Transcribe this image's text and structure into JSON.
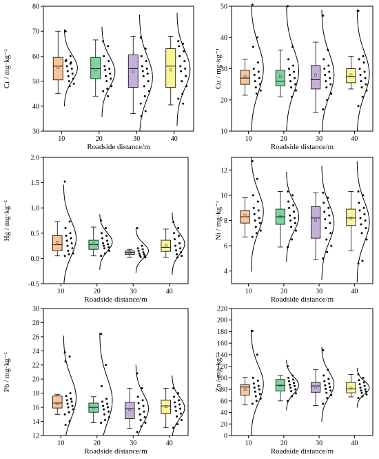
{
  "chart_data": [
    {
      "type": "box",
      "ylabel": "Cr / mg·kg⁻¹",
      "xlabel": "Roadside distance/m",
      "categories": [
        "10",
        "20",
        "30",
        "40"
      ],
      "ylim": [
        30,
        80
      ],
      "yticks": [
        30,
        40,
        50,
        60,
        70,
        80
      ],
      "colors": [
        "#f8c49a",
        "#7fd3a0",
        "#c4b1da",
        "#fbf59a"
      ],
      "boxes": [
        {
          "category": "10",
          "whisker_low": 45,
          "q1": 50.5,
          "median": 56,
          "q3": 59.5,
          "whisker_high": 70,
          "mean": 55.5
        },
        {
          "category": "20",
          "whisker_low": 44,
          "q1": 51,
          "median": 55,
          "q3": 59.5,
          "whisker_high": 66.5,
          "mean": 54.5
        },
        {
          "category": "30",
          "whisker_low": 37,
          "q1": 47.5,
          "median": 55,
          "q3": 60.5,
          "whisker_high": 68,
          "mean": 54
        },
        {
          "category": "40",
          "whisker_low": 40.5,
          "q1": 47.5,
          "median": 56,
          "q3": 63,
          "whisker_high": 68,
          "mean": 54.5
        }
      ],
      "points": [
        [
          70,
          60,
          58.5,
          57.5,
          56,
          55,
          54,
          53,
          52,
          51,
          50,
          49,
          48,
          58,
          57
        ],
        [
          66,
          64,
          60,
          58,
          56,
          55,
          54.5,
          53,
          52,
          51,
          50,
          48,
          47,
          46,
          44
        ],
        [
          67.5,
          63,
          60,
          58,
          56,
          55,
          54,
          53,
          52,
          50,
          48,
          46,
          44,
          41,
          38,
          36
        ],
        [
          66,
          65,
          64,
          62,
          60,
          58,
          56,
          55,
          54,
          52,
          50,
          48,
          45,
          43,
          41
        ]
      ]
    },
    {
      "type": "box",
      "ylabel": "Cu / mg·kg⁻¹",
      "xlabel": "Roadside distance/m",
      "categories": [
        "10",
        "20",
        "30",
        "40"
      ],
      "ylim": [
        10,
        50
      ],
      "yticks": [
        10,
        20,
        30,
        40,
        50
      ],
      "colors": [
        "#f8c49a",
        "#7fd3a0",
        "#c4b1da",
        "#fbf59a"
      ],
      "boxes": [
        {
          "category": "10",
          "whisker_low": 21.5,
          "q1": 25,
          "median": 27,
          "q3": 29.5,
          "whisker_high": 33,
          "mean": 27.5
        },
        {
          "category": "20",
          "whisker_low": 21,
          "q1": 24.5,
          "median": 26,
          "q3": 29.5,
          "whisker_high": 36,
          "mean": 27.5
        },
        {
          "category": "30",
          "whisker_low": 16,
          "q1": 23.5,
          "median": 26.5,
          "q3": 31,
          "whisker_high": 38.5,
          "mean": 28
        },
        {
          "category": "40",
          "whisker_low": 23.5,
          "q1": 25.5,
          "median": 27.5,
          "q3": 30,
          "whisker_high": 34,
          "mean": 28
        }
      ],
      "points": [
        [
          50.5,
          40,
          37,
          32,
          30,
          29,
          28,
          27,
          26,
          25,
          24,
          23,
          22
        ],
        [
          50,
          37,
          33,
          31,
          30,
          29,
          28,
          27,
          26,
          25,
          24,
          23,
          21
        ],
        [
          47,
          36,
          33,
          31,
          30,
          29,
          28,
          27,
          26,
          25,
          24,
          22,
          20,
          17
        ],
        [
          48.5,
          34,
          33,
          32,
          30,
          29,
          28,
          27,
          26,
          25,
          24,
          23,
          21,
          18
        ]
      ]
    },
    {
      "type": "box",
      "ylabel": "Hg / mg·kg⁻¹",
      "xlabel": "Roadside distance/m",
      "categories": [
        "10",
        "20",
        "30",
        "40"
      ],
      "ylim": [
        -0.5,
        2.0
      ],
      "yticks": [
        -0.5,
        0.0,
        0.5,
        1.0,
        1.5,
        2.0
      ],
      "colors": [
        "#f8c49a",
        "#7fd3a0",
        "#c4b1da",
        "#fbf59a"
      ],
      "boxes": [
        {
          "category": "10",
          "whisker_low": 0.05,
          "q1": 0.15,
          "median": 0.27,
          "q3": 0.45,
          "whisker_high": 0.73,
          "mean": 0.32
        },
        {
          "category": "20",
          "whisker_low": 0.05,
          "q1": 0.18,
          "median": 0.27,
          "q3": 0.36,
          "whisker_high": 0.62,
          "mean": 0.29
        },
        {
          "category": "30",
          "whisker_low": 0.02,
          "q1": 0.08,
          "median": 0.12,
          "q3": 0.15,
          "whisker_high": 0.18,
          "mean": 0.11
        },
        {
          "category": "40",
          "whisker_low": 0.02,
          "q1": 0.14,
          "median": 0.22,
          "q3": 0.36,
          "whisker_high": 0.58,
          "mean": 0.25
        }
      ],
      "points": [
        [
          1.52,
          0.73,
          0.6,
          0.5,
          0.45,
          0.4,
          0.35,
          0.3,
          0.25,
          0.2,
          0.15,
          0.1,
          0.08,
          0.05
        ],
        [
          0.75,
          0.6,
          0.5,
          0.45,
          0.4,
          0.35,
          0.3,
          0.28,
          0.25,
          0.22,
          0.2,
          0.15,
          0.1,
          0.05
        ],
        [
          0.6,
          0.25,
          0.2,
          0.18,
          0.15,
          0.12,
          0.1,
          0.08,
          0.06,
          0.04,
          0.03,
          0.02
        ],
        [
          0.72,
          0.6,
          0.5,
          0.45,
          0.38,
          0.3,
          0.25,
          0.2,
          0.16,
          0.12,
          0.08,
          0.05,
          0.02
        ]
      ]
    },
    {
      "type": "box",
      "ylabel": "Ni / mg·kg⁻¹",
      "xlabel": "Roadside distance/m",
      "categories": [
        "10",
        "20",
        "30",
        "40"
      ],
      "ylim": [
        3,
        13
      ],
      "yticks": [
        4,
        6,
        8,
        10,
        12
      ],
      "colors": [
        "#f8c49a",
        "#7fd3a0",
        "#c4b1da",
        "#fbf59a"
      ],
      "boxes": [
        {
          "category": "10",
          "whisker_low": 6.7,
          "q1": 7.8,
          "median": 8.3,
          "q3": 8.8,
          "whisker_high": 9.8,
          "mean": 8.4
        },
        {
          "category": "20",
          "whisker_low": 5.9,
          "q1": 7.7,
          "median": 8.3,
          "q3": 8.9,
          "whisker_high": 10.3,
          "mean": 8.3
        },
        {
          "category": "30",
          "whisker_low": 4.9,
          "q1": 6.6,
          "median": 8.2,
          "q3": 9.1,
          "whisker_high": 10.2,
          "mean": 8.0
        },
        {
          "category": "40",
          "whisker_low": 5.6,
          "q1": 7.6,
          "median": 8.2,
          "q3": 8.9,
          "whisker_high": 10.3,
          "mean": 8.2
        }
      ],
      "points": [
        [
          12.7,
          11.3,
          10,
          9.5,
          9,
          8.8,
          8.5,
          8.2,
          8,
          7.8,
          7.5,
          7.2,
          7,
          6.7
        ],
        [
          10.3,
          10,
          9.5,
          9.2,
          9,
          8.7,
          8.4,
          8.2,
          8,
          7.8,
          7.5,
          7.2,
          6.5,
          5.9
        ],
        [
          10.2,
          9.8,
          9.4,
          9,
          8.7,
          8.4,
          8.1,
          7.8,
          7.4,
          7,
          6.5,
          6,
          5.5,
          5
        ],
        [
          10.3,
          10,
          9.4,
          9,
          8.8,
          8.5,
          8.2,
          8,
          7.7,
          7.4,
          7,
          6.5,
          4.8,
          4.6
        ]
      ]
    },
    {
      "type": "box",
      "ylabel": "Pb / mg·kg⁻¹",
      "xlabel": "Roadside distance/m",
      "categories": [
        "10",
        "20",
        "30",
        "40"
      ],
      "ylim": [
        12,
        30
      ],
      "yticks": [
        12,
        14,
        16,
        18,
        20,
        22,
        24,
        26,
        28,
        30
      ],
      "colors": [
        "#f8c49a",
        "#7fd3a0",
        "#c4b1da",
        "#fbf59a"
      ],
      "boxes": [
        {
          "category": "10",
          "whisker_low": 15,
          "q1": 15.9,
          "median": 16.6,
          "q3": 17.6,
          "whisker_high": 17.8,
          "mean": 16.5
        },
        {
          "category": "20",
          "whisker_low": 13.8,
          "q1": 15.3,
          "median": 16,
          "q3": 16.6,
          "whisker_high": 17.5,
          "mean": 15.9
        },
        {
          "category": "30",
          "whisker_low": 13,
          "q1": 14.4,
          "median": 15.8,
          "q3": 16.7,
          "whisker_high": 18.7,
          "mean": 15.7
        },
        {
          "category": "40",
          "whisker_low": 13.1,
          "q1": 15.1,
          "median": 16.2,
          "q3": 17,
          "whisker_high": 18.7,
          "mean": 16.1
        }
      ],
      "points": [
        [
          23.8,
          23.2,
          22.5,
          18,
          17.6,
          17.2,
          17,
          16.8,
          16.5,
          16.2,
          16,
          15.7,
          15.3,
          15,
          14,
          13.5
        ],
        [
          26.4,
          22,
          19,
          17.2,
          16.8,
          16.5,
          16.2,
          16,
          15.7,
          15.4,
          15,
          14.6,
          14.2,
          13.8
        ],
        [
          20.8,
          18.7,
          17.5,
          17,
          16.6,
          16.2,
          15.8,
          15.4,
          15,
          14.6,
          14.2,
          13.8,
          13.3,
          12.5
        ],
        [
          18.7,
          18,
          17.5,
          17,
          16.7,
          16.4,
          16.1,
          15.8,
          15.5,
          15.1,
          14.7,
          14.2,
          13.6,
          13.1
        ]
      ]
    },
    {
      "type": "box",
      "ylabel": "Zn / mg·kg⁻¹",
      "xlabel": "Roadside distance/m",
      "categories": [
        "10",
        "20",
        "30",
        "40"
      ],
      "ylim": [
        0,
        220
      ],
      "yticks": [
        0,
        20,
        40,
        60,
        80,
        100,
        120,
        140,
        160,
        180,
        200,
        220
      ],
      "colors": [
        "#f8c49a",
        "#7fd3a0",
        "#c4b1da",
        "#fbf59a"
      ],
      "boxes": [
        {
          "category": "10",
          "whisker_low": 53,
          "q1": 70,
          "median": 84,
          "q3": 88,
          "whisker_high": 101,
          "mean": 80
        },
        {
          "category": "20",
          "whisker_low": 60,
          "q1": 77,
          "median": 87,
          "q3": 97,
          "whisker_high": 104,
          "mean": 86
        },
        {
          "category": "30",
          "whisker_low": 52,
          "q1": 75,
          "median": 86,
          "q3": 92,
          "whisker_high": 114,
          "mean": 84
        },
        {
          "category": "40",
          "whisker_low": 67,
          "q1": 74,
          "median": 81,
          "q3": 92,
          "whisker_high": 106,
          "mean": 82
        }
      ],
      "points": [
        [
          181,
          140,
          100,
          95,
          90,
          86,
          83,
          80,
          76,
          72,
          68,
          64,
          60,
          55
        ],
        [
          120,
          104,
          100,
          97,
          94,
          91,
          88,
          86,
          83,
          80,
          77,
          73,
          68,
          60
        ],
        [
          148,
          114,
          104,
          98,
          94,
          90,
          87,
          84,
          81,
          78,
          74,
          70,
          65,
          55
        ],
        [
          106,
          100,
          96,
          92,
          89,
          86,
          83,
          80,
          78,
          76,
          74,
          71,
          68,
          65
        ]
      ]
    }
  ]
}
